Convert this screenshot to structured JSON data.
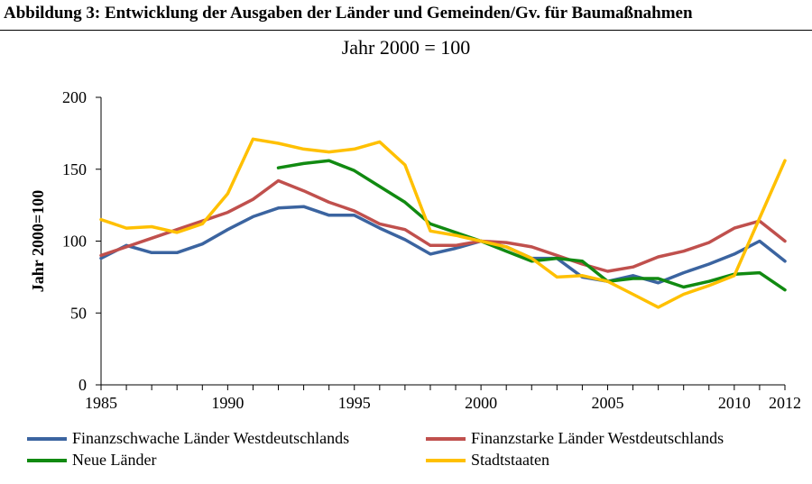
{
  "figure": {
    "title": "Abbildung 3: Entwicklung der Ausgaben der Länder und Gemeinden/Gv. für Baumaßnahmen",
    "subtitle": "Jahr 2000 = 100"
  },
  "chart_data": {
    "type": "line",
    "ylabel": "Jahr 2000=100",
    "xlim": [
      1985,
      2012
    ],
    "ylim": [
      0,
      200
    ],
    "x_ticks": [
      1985,
      1990,
      1995,
      2000,
      2005,
      2010,
      2012
    ],
    "y_ticks": [
      0,
      50,
      100,
      150,
      200
    ],
    "grid": false,
    "legend_position": "bottom",
    "x": [
      1985,
      1986,
      1987,
      1988,
      1989,
      1990,
      1991,
      1992,
      1993,
      1994,
      1995,
      1996,
      1997,
      1998,
      1999,
      2000,
      2001,
      2002,
      2003,
      2004,
      2005,
      2006,
      2007,
      2008,
      2009,
      2010,
      2011,
      2012
    ],
    "series": [
      {
        "name": "Finanzschwache Länder Westdeutschlands",
        "color": "#3b64a0",
        "values": [
          88,
          97,
          92,
          92,
          98,
          108,
          117,
          123,
          124,
          118,
          118,
          109,
          101,
          91,
          95,
          100,
          96,
          88,
          88,
          75,
          72,
          76,
          71,
          78,
          84,
          91,
          100,
          86
        ]
      },
      {
        "name": "Finanzstarke Länder Westdeutschlands",
        "color": "#c0504d",
        "values": [
          90,
          96,
          102,
          108,
          114,
          120,
          129,
          142,
          135,
          127,
          121,
          112,
          108,
          97,
          97,
          100,
          99,
          96,
          90,
          84,
          79,
          82,
          89,
          93,
          99,
          109,
          114,
          100
        ]
      },
      {
        "name": "Neue Länder",
        "color": "#118a11",
        "values": [
          null,
          null,
          null,
          null,
          null,
          null,
          null,
          151,
          154,
          156,
          149,
          138,
          127,
          112,
          106,
          100,
          93,
          86,
          88,
          86,
          72,
          74,
          74,
          68,
          72,
          77,
          78,
          66
        ]
      },
      {
        "name": "Stadtstaaten",
        "color": "#ffc000",
        "values": [
          115,
          109,
          110,
          106,
          112,
          133,
          171,
          168,
          164,
          162,
          164,
          169,
          153,
          107,
          104,
          100,
          96,
          88,
          75,
          76,
          72,
          63,
          54,
          63,
          69,
          76,
          116,
          156
        ]
      }
    ]
  }
}
